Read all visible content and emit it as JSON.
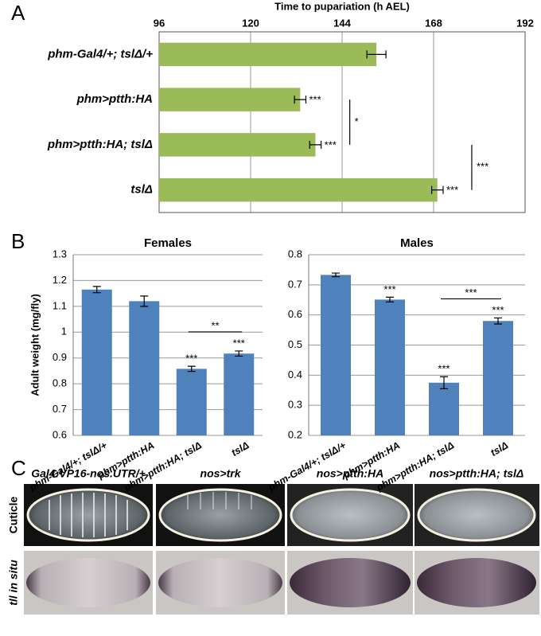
{
  "panel_labels": [
    "A",
    "B",
    "C"
  ],
  "chart_data": [
    {
      "type": "bar",
      "orientation": "horizontal",
      "x_label": "Time to pupariation (h AEL)",
      "categories": [
        "phm-Gal4/+; tslΔ/+",
        "phm>ptth:HA",
        "phm>ptth:HA; tslΔ",
        "tslΔ"
      ],
      "values": [
        153,
        133,
        137,
        169
      ],
      "errors": [
        2.5,
        1.5,
        1.5,
        1.5
      ],
      "annotations": [
        null,
        "***",
        "***",
        "***"
      ],
      "brackets": [
        {
          "label": "*",
          "between": [
            "phm>ptth:HA",
            "phm>ptth:HA; tslΔ"
          ]
        },
        {
          "label": "***",
          "between": [
            "phm>ptth:HA; tslΔ",
            "tslΔ"
          ]
        }
      ],
      "color": "#9bbb59",
      "xlim": [
        96,
        192
      ],
      "xticks": [
        96,
        120,
        144,
        168,
        192
      ],
      "grid": true
    },
    {
      "type": "bar",
      "orientation": "vertical",
      "title": "Females",
      "y_label": "Adult weight (mg/fly)",
      "categories": [
        "phm-Gal4/+; tslΔ/+",
        "phm>ptth:HA",
        "phm>ptth:HA; tslΔ",
        "tslΔ"
      ],
      "values": [
        1.165,
        1.12,
        0.858,
        0.917
      ],
      "errors": [
        0.012,
        0.02,
        0.01,
        0.01
      ],
      "annotations": [
        null,
        null,
        "***",
        "***"
      ],
      "brackets": [
        {
          "label": "**",
          "between": [
            "phm>ptth:HA; tslΔ",
            "tslΔ"
          ]
        }
      ],
      "color": "#4f81bd",
      "ylim": [
        0.6,
        1.3
      ],
      "yticks": [
        0.6,
        0.7,
        0.8,
        0.9,
        1,
        1.1,
        1.2,
        1.3
      ],
      "grid": true
    },
    {
      "type": "bar",
      "orientation": "vertical",
      "title": "Males",
      "categories": [
        "phm-Gal4/+; tslΔ/+",
        "phm>ptth:HA",
        "phm>ptth:HA; tslΔ",
        "tslΔ"
      ],
      "values": [
        0.733,
        0.651,
        0.375,
        0.58
      ],
      "errors": [
        0.006,
        0.008,
        0.02,
        0.01
      ],
      "annotations": [
        null,
        "***",
        "***",
        "***"
      ],
      "brackets": [
        {
          "label": "***",
          "between": [
            "phm>ptth:HA; tslΔ",
            "tslΔ"
          ]
        }
      ],
      "color": "#4f81bd",
      "ylim": [
        0.2,
        0.8
      ],
      "yticks": [
        0.2,
        0.3,
        0.4,
        0.5,
        0.6,
        0.7,
        0.8
      ],
      "grid": true
    }
  ],
  "image_panel": {
    "columns": [
      "Gal4:VP16-nos.UTR/+",
      "nos>trk",
      "nos>ptth:HA",
      "nos>ptth:HA;  tslΔ"
    ],
    "rows": [
      "Cuticle",
      "tll in situ"
    ]
  }
}
